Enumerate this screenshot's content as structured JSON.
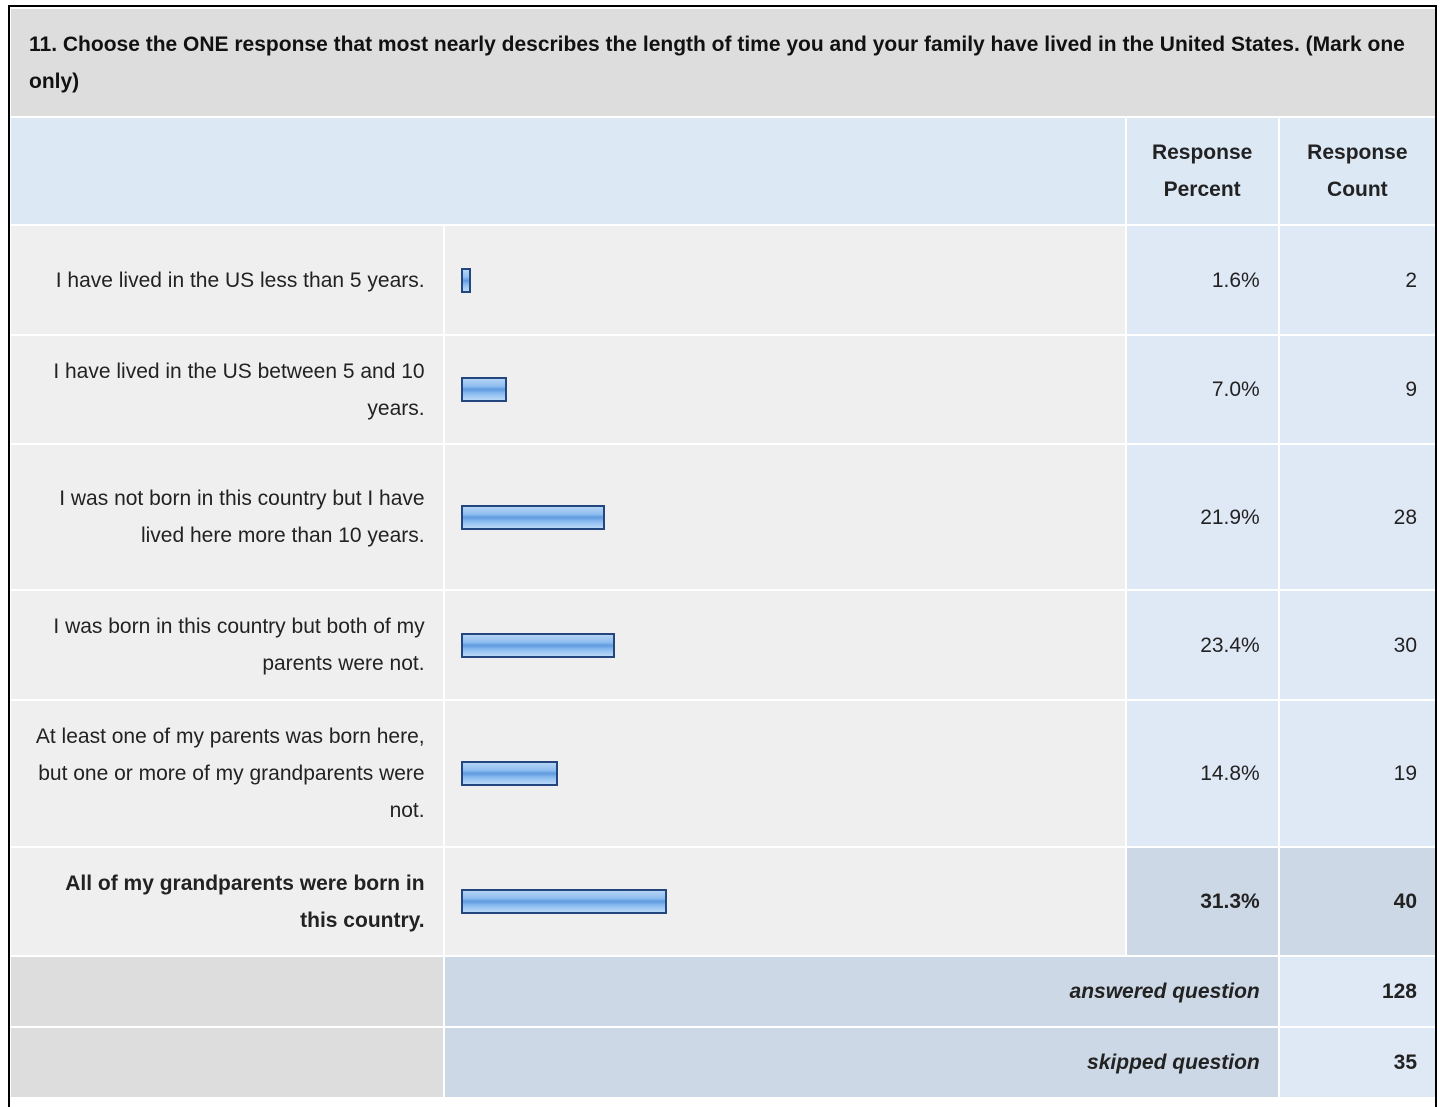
{
  "question": "11. Choose the ONE response that most nearly describes the length of time you and your family have lived in the United States. (Mark one only)",
  "header": {
    "percent": "Response Percent",
    "count": "Response Count"
  },
  "rows": [
    {
      "label": "I have lived in the US less than 5 years.",
      "percent": 1.6,
      "percent_label": "1.6%",
      "count": 2
    },
    {
      "label": "I have lived in the US between 5 and 10 years.",
      "percent": 7.0,
      "percent_label": "7.0%",
      "count": 9
    },
    {
      "label": "I was not born in this country but I have lived here more than 10 years.",
      "percent": 21.9,
      "percent_label": "21.9%",
      "count": 28
    },
    {
      "label": "I was born in this country but both of my parents were not.",
      "percent": 23.4,
      "percent_label": "23.4%",
      "count": 30
    },
    {
      "label": "At least one of my parents was born here, but one or more of my grandparents were not.",
      "percent": 14.8,
      "percent_label": "14.8%",
      "count": 19
    },
    {
      "label": "All of my grandparents were born in this country.",
      "percent": 31.3,
      "percent_label": "31.3%",
      "count": 40
    }
  ],
  "answered": {
    "label": "answered question",
    "count": 128
  },
  "skipped": {
    "label": "skipped question",
    "count": 35
  }
}
